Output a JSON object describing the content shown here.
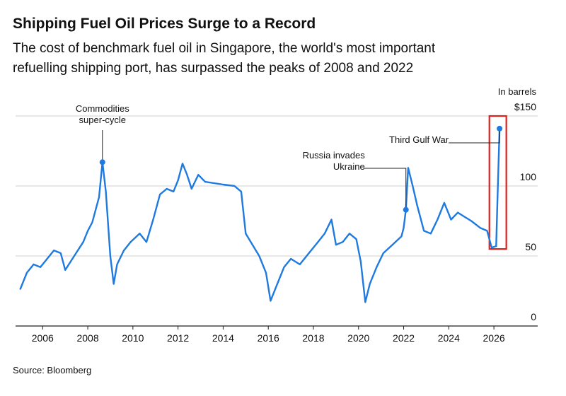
{
  "chart_data": {
    "type": "line",
    "title": "Shipping Fuel Oil Prices Surge to a Record",
    "subtitle_lines": [
      "The cost of benchmark fuel oil in Singapore, the world's most important",
      "refuelling shipping port, has surpassed the peaks of 2008 and 2022"
    ],
    "unit_label": "In barrels",
    "source": "Source: Bloomberg",
    "x": [
      2005.0,
      2005.3,
      2005.6,
      2005.9,
      2006.2,
      2006.5,
      2006.8,
      2007.0,
      2007.4,
      2007.8,
      2008.0,
      2008.2,
      2008.5,
      2008.65,
      2008.8,
      2009.0,
      2009.15,
      2009.3,
      2009.6,
      2009.9,
      2010.3,
      2010.6,
      2010.9,
      2011.2,
      2011.5,
      2011.8,
      2012.0,
      2012.2,
      2012.4,
      2012.6,
      2012.9,
      2013.2,
      2013.6,
      2014.0,
      2014.5,
      2014.8,
      2015.0,
      2015.3,
      2015.6,
      2015.9,
      2016.1,
      2016.4,
      2016.7,
      2017.0,
      2017.4,
      2017.8,
      2018.2,
      2018.5,
      2018.8,
      2019.0,
      2019.3,
      2019.6,
      2019.9,
      2020.1,
      2020.3,
      2020.5,
      2020.8,
      2021.1,
      2021.5,
      2021.9,
      2022.0,
      2022.1,
      2022.2,
      2022.4,
      2022.6,
      2022.9,
      2023.2,
      2023.5,
      2023.8,
      2024.1,
      2024.4,
      2024.7,
      2025.0,
      2025.4,
      2025.7,
      2025.9,
      2026.1,
      2026.15,
      2026.25
    ],
    "series": [
      {
        "name": "Fuel oil",
        "color": "#1f7ae0",
        "values": [
          26,
          38,
          44,
          42,
          48,
          54,
          52,
          40,
          50,
          60,
          68,
          74,
          92,
          117,
          96,
          50,
          30,
          44,
          54,
          60,
          66,
          60,
          76,
          94,
          98,
          96,
          104,
          116,
          108,
          98,
          108,
          103,
          102,
          101,
          100,
          96,
          66,
          58,
          50,
          38,
          18,
          30,
          42,
          48,
          44,
          52,
          60,
          66,
          76,
          58,
          60,
          66,
          62,
          46,
          17,
          30,
          42,
          52,
          58,
          64,
          70,
          83,
          113,
          100,
          86,
          68,
          66,
          76,
          88,
          76,
          81,
          78,
          75,
          70,
          68,
          56,
          57,
          86,
          141
        ]
      }
    ],
    "xlim": [
      2004.8,
      2027.0
    ],
    "xticks": [
      2006,
      2008,
      2010,
      2012,
      2014,
      2016,
      2018,
      2020,
      2022,
      2024,
      2026
    ],
    "ylim": [
      0,
      150
    ],
    "yticks": [
      0,
      50,
      100,
      {
        "value": 150,
        "label": "$150"
      }
    ],
    "grid": true,
    "annotations": [
      {
        "lines": [
          "Commodities",
          "super-cycle"
        ],
        "x": 2008.65,
        "y": 117
      },
      {
        "lines": [
          "Russia invades",
          "Ukraine"
        ],
        "x": 2022.1,
        "y": 83
      },
      {
        "lines": [
          "Third Gulf War"
        ],
        "x": 2026.25,
        "y": 141
      }
    ],
    "highlight": {
      "xlim": [
        2025.8,
        2026.55
      ],
      "ylim": [
        55,
        150
      ],
      "color": "#e0201b"
    }
  }
}
